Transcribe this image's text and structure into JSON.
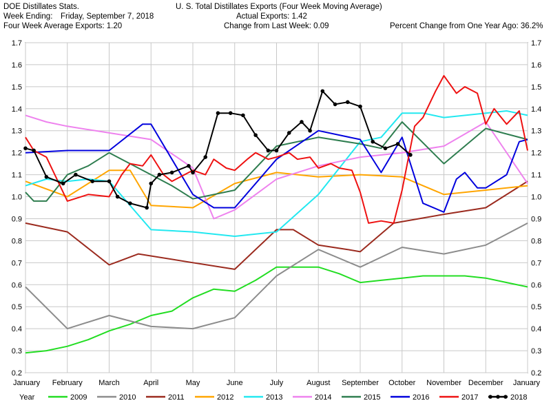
{
  "header": {
    "left_line1": "DOE Distillates Stats.",
    "left_line2_label": "Week Ending:",
    "left_line2_value": "Friday, September 7, 2018",
    "left_line3": "Four Week Average Exports: 1.20",
    "center_line1": "U. S. Total Distillates Exports (Four Week Moving Average)",
    "center_line2": "Actual Exports: 1.42",
    "center_line3": "Change from Last Week: 0.09",
    "right_line3": "Percent Change from One Year Ago:  36.2%"
  },
  "chart_data": {
    "type": "line",
    "title": "U. S. Total Distillates Exports (Four Week Moving Average)",
    "xlabel": "",
    "ylabel": "",
    "ylim": [
      0.2,
      1.7
    ],
    "y_ticks": [
      "0.2",
      "0.3",
      "0.4",
      "0.5",
      "0.6",
      "0.7",
      "0.8",
      "0.9",
      "1.0",
      "1.1",
      "1.2",
      "1.3",
      "1.4",
      "1.5",
      "1.6",
      "1.7"
    ],
    "x_ticks": [
      "January",
      "February",
      "March",
      "April",
      "May",
      "June",
      "July",
      "August",
      "September",
      "October",
      "November",
      "December",
      "January"
    ],
    "grid": true,
    "legend_title": "Year",
    "legend_position": "bottom",
    "series": [
      {
        "name": "2009",
        "color": "#22dd22",
        "marker": false,
        "x": [
          0,
          0.5,
          1,
          1.5,
          2,
          2.5,
          3,
          3.5,
          4,
          4.5,
          5,
          5.5,
          6,
          6.5,
          7,
          7.5,
          8,
          8.5,
          9,
          9.5,
          10,
          10.5,
          11,
          11.5,
          12
        ],
        "y": [
          0.29,
          0.3,
          0.32,
          0.35,
          0.39,
          0.42,
          0.46,
          0.48,
          0.54,
          0.58,
          0.57,
          0.62,
          0.68,
          0.68,
          0.68,
          0.65,
          0.61,
          0.62,
          0.63,
          0.64,
          0.64,
          0.64,
          0.63,
          0.61,
          0.59
        ]
      },
      {
        "name": "2010",
        "color": "#8c8c8c",
        "marker": false,
        "x": [
          0,
          1,
          2,
          3,
          4,
          5,
          6,
          7,
          8,
          9,
          10,
          11,
          12
        ],
        "y": [
          0.59,
          0.4,
          0.46,
          0.41,
          0.4,
          0.45,
          0.64,
          0.76,
          0.68,
          0.77,
          0.74,
          0.78,
          0.88
        ]
      },
      {
        "name": "2011",
        "color": "#9b2a1e",
        "marker": false,
        "x": [
          0,
          1,
          2,
          2.7,
          4,
          5,
          6,
          6.4,
          7,
          7.7,
          8,
          8.8,
          10,
          11,
          12
        ],
        "y": [
          0.88,
          0.84,
          0.69,
          0.74,
          0.7,
          0.67,
          0.85,
          0.85,
          0.78,
          0.76,
          0.75,
          0.88,
          0.92,
          0.95,
          1.07
        ]
      },
      {
        "name": "2012",
        "color": "#ffa500",
        "marker": false,
        "x": [
          0,
          1,
          2,
          2.5,
          3,
          4,
          5,
          6,
          7,
          8,
          9,
          10,
          11,
          12
        ],
        "y": [
          1.07,
          1.0,
          1.12,
          1.12,
          0.96,
          0.95,
          1.06,
          1.11,
          1.09,
          1.1,
          1.09,
          1.01,
          1.03,
          1.05
        ]
      },
      {
        "name": "2013",
        "color": "#22e8f0",
        "marker": false,
        "x": [
          0,
          0.5,
          1,
          1.5,
          2,
          3,
          4,
          5,
          6,
          7,
          8,
          8.5,
          9,
          9.5,
          10,
          11,
          11.5,
          12
        ],
        "y": [
          1.05,
          1.08,
          1.07,
          1.08,
          1.07,
          0.85,
          0.84,
          0.82,
          0.84,
          1.01,
          1.25,
          1.27,
          1.38,
          1.38,
          1.36,
          1.38,
          1.39,
          1.37
        ]
      },
      {
        "name": "2014",
        "color": "#ee82ee",
        "marker": false,
        "x": [
          0,
          0.5,
          1,
          2,
          3,
          4,
          4.5,
          5,
          6,
          7,
          8,
          9,
          10,
          11,
          12
        ],
        "y": [
          1.37,
          1.34,
          1.32,
          1.29,
          1.26,
          1.13,
          0.9,
          0.94,
          1.08,
          1.14,
          1.18,
          1.2,
          1.23,
          1.34,
          1.06
        ]
      },
      {
        "name": "2015",
        "color": "#2e7d4f",
        "marker": false,
        "x": [
          0,
          0.2,
          0.5,
          1,
          1.5,
          2,
          3,
          3.5,
          4,
          5,
          6,
          7,
          8,
          8.5,
          9,
          10,
          11,
          12
        ],
        "y": [
          1.02,
          0.98,
          0.98,
          1.1,
          1.14,
          1.2,
          1.1,
          1.05,
          0.99,
          1.03,
          1.23,
          1.27,
          1.24,
          1.22,
          1.34,
          1.15,
          1.31,
          1.26
        ]
      },
      {
        "name": "2016",
        "color": "#0000dd",
        "marker": false,
        "x": [
          0,
          1,
          2,
          2.8,
          3,
          4,
          4.5,
          5,
          6,
          7,
          8,
          8.5,
          9,
          9.5,
          10,
          10.3,
          10.5,
          10.8,
          11,
          11.5,
          11.8,
          12
        ],
        "y": [
          1.2,
          1.21,
          1.21,
          1.33,
          1.33,
          1.01,
          0.95,
          0.95,
          1.17,
          1.3,
          1.26,
          1.11,
          1.27,
          0.97,
          0.93,
          1.08,
          1.11,
          1.04,
          1.04,
          1.1,
          1.25,
          1.26
        ]
      },
      {
        "name": "2017",
        "color": "#ee1111",
        "marker": false,
        "x": [
          0,
          0.2,
          0.5,
          1,
          1.5,
          2,
          2.3,
          2.5,
          2.8,
          3,
          3.3,
          3.5,
          4,
          4.3,
          4.5,
          4.8,
          5,
          5.3,
          5.5,
          5.8,
          6,
          6.3,
          6.5,
          6.8,
          7,
          7.3,
          7.5,
          7.8,
          8,
          8.2,
          8.5,
          8.8,
          9,
          9.3,
          9.5,
          9.8,
          10,
          10.3,
          10.5,
          10.8,
          11,
          11.2,
          11.5,
          11.8,
          12
        ],
        "y": [
          1.27,
          1.21,
          1.18,
          0.98,
          1.01,
          1.0,
          1.1,
          1.15,
          1.14,
          1.19,
          1.1,
          1.07,
          1.12,
          1.1,
          1.17,
          1.13,
          1.12,
          1.17,
          1.2,
          1.17,
          1.18,
          1.2,
          1.17,
          1.18,
          1.13,
          1.15,
          1.13,
          1.12,
          1.02,
          0.88,
          0.89,
          0.88,
          1.03,
          1.32,
          1.36,
          1.48,
          1.55,
          1.47,
          1.5,
          1.47,
          1.33,
          1.4,
          1.33,
          1.39,
          1.21
        ]
      },
      {
        "name": "2018",
        "color": "#000000",
        "marker": true,
        "x": [
          0,
          0.2,
          0.5,
          0.9,
          1.2,
          1.6,
          2,
          2.2,
          2.5,
          2.9,
          3,
          3.2,
          3.5,
          3.9,
          4,
          4.3,
          4.6,
          4.9,
          5.2,
          5.5,
          5.8,
          6,
          6.3,
          6.6,
          6.8,
          7.1,
          7.4,
          7.7,
          8,
          8.3,
          8.6,
          8.9,
          9.2
        ],
        "y": [
          1.22,
          1.21,
          1.09,
          1.06,
          1.1,
          1.07,
          1.07,
          1.0,
          0.97,
          0.95,
          1.06,
          1.1,
          1.11,
          1.14,
          1.11,
          1.18,
          1.38,
          1.38,
          1.37,
          1.28,
          1.21,
          1.21,
          1.29,
          1.34,
          1.3,
          1.48,
          1.42,
          1.43,
          1.41,
          1.25,
          1.22,
          1.24,
          1.19
        ]
      }
    ]
  }
}
